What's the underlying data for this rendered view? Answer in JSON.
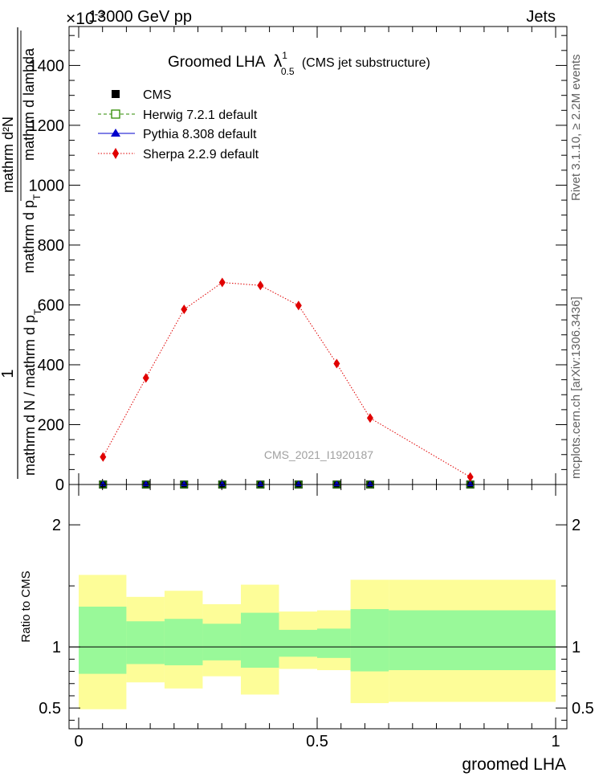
{
  "header": {
    "left": "13000 GeV pp",
    "right": "Jets",
    "exponent_label": "×10",
    "exponent_power": "-3"
  },
  "title": {
    "main": "Groomed LHA",
    "lambda": "λ",
    "sup": "1",
    "sub": "0.5",
    "suffix": "(CMS jet substructure)"
  },
  "side_labels": {
    "rivet": "Rivet 3.1.10, ≥ 2.2M events",
    "mcplots": "mcplots.cern.ch [arXiv:1306.3436]"
  },
  "watermark": "CMS_2021_I1920187",
  "upper_ylabel": {
    "one": "1",
    "denominator": "mathrm d N / mathrm d p",
    "denominator_sub": "T",
    "numerator_a": "mathrm d²N",
    "numerator_b": "mathrm d p",
    "numerator_b_sub": "T",
    "numerator_c": "mathrm d lambda"
  },
  "chart_data": [
    {
      "panel": "main",
      "type": "line",
      "xlim": [
        0,
        1
      ],
      "ylim": [
        0,
        1530
      ],
      "yticks": [
        0,
        200,
        400,
        600,
        800,
        1000,
        1200,
        1400
      ],
      "ytick_labels": [
        "0",
        "200",
        "400",
        "600",
        "800",
        "1000",
        "1200",
        "1400"
      ],
      "legend": {
        "placement": "top-left"
      },
      "x": [
        0.051,
        0.141,
        0.221,
        0.301,
        0.381,
        0.461,
        0.541,
        0.611,
        0.821
      ],
      "series": [
        {
          "name": "CMS",
          "color": "#000000",
          "marker": "square",
          "values": [
            0,
            0,
            0,
            0,
            0,
            0,
            0,
            0,
            0
          ]
        },
        {
          "name": "Herwig 7.2.1 default",
          "color": "#2e8b00",
          "marker": "open-square",
          "line": "dashed",
          "values": [
            0,
            0,
            0,
            0,
            0,
            0,
            0,
            0,
            0
          ]
        },
        {
          "name": "Pythia 8.308 default",
          "color": "#0000cc",
          "marker": "triangle",
          "line": "solid",
          "values": [
            0,
            0,
            0,
            0,
            0,
            0,
            0,
            0,
            0
          ]
        },
        {
          "name": "Sherpa 2.2.9 default",
          "color": "#e00000",
          "marker": "diamond",
          "line": "dotted",
          "values": [
            92,
            356,
            585,
            675,
            665,
            598,
            404,
            222,
            25
          ],
          "errors": [
            8,
            10,
            12,
            12,
            12,
            12,
            10,
            6,
            6
          ]
        }
      ]
    },
    {
      "panel": "ratio",
      "type": "area",
      "ylabel": "Ratio to CMS",
      "xlabel": "groomed LHA",
      "xlim": [
        0,
        1
      ],
      "ylim": [
        0.33,
        2.33
      ],
      "xticks": [
        0,
        0.5,
        1
      ],
      "xtick_labels": [
        "0",
        "0.5",
        "1"
      ],
      "yticks": [
        0.5,
        1,
        2
      ],
      "ytick_labels": [
        "0.5",
        "1",
        "2"
      ],
      "reference_line": 1,
      "bin_edges": [
        0.0,
        0.1,
        0.18,
        0.26,
        0.34,
        0.42,
        0.5,
        0.57,
        0.65,
        1.0
      ],
      "bands": [
        {
          "name": "stat",
          "color": "#99f999",
          "low": [
            0.78,
            0.86,
            0.85,
            0.89,
            0.83,
            0.92,
            0.91,
            0.8,
            0.81
          ],
          "high": [
            1.33,
            1.21,
            1.23,
            1.19,
            1.28,
            1.14,
            1.15,
            1.31,
            1.3
          ]
        },
        {
          "name": "total",
          "color": "#fdfd98",
          "low": [
            0.49,
            0.71,
            0.66,
            0.76,
            0.61,
            0.82,
            0.81,
            0.54,
            0.55
          ],
          "high": [
            1.59,
            1.41,
            1.46,
            1.35,
            1.51,
            1.29,
            1.3,
            1.55,
            1.55
          ]
        }
      ]
    }
  ]
}
